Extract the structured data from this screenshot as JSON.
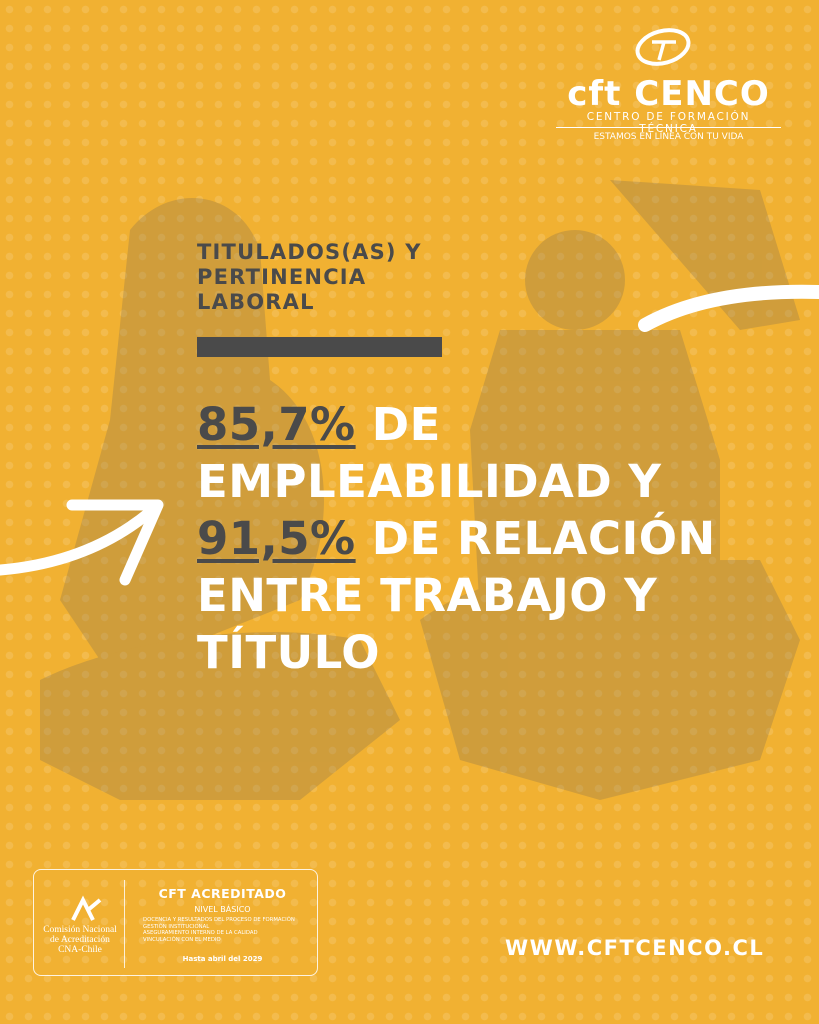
{
  "logo": {
    "wordmark": "cft CENCO",
    "subtitle": "CENTRO DE FORMACIÓN TÉCNICA",
    "tagline": "ESTAMOS EN LÍNEA CON TU VIDA"
  },
  "title": {
    "lines": [
      "TITULADOS(AS) Y",
      "PERTINENCIA",
      "LABORAL"
    ]
  },
  "headline": {
    "lines": [
      [
        {
          "text": "85,7%",
          "highlight": true
        },
        {
          "text": " DE"
        }
      ],
      [
        {
          "text": "EMPLEABILIDAD Y"
        }
      ],
      [
        {
          "text": "91,5%",
          "highlight": true
        },
        {
          "text": " DE RELACIÓN"
        }
      ],
      [
        {
          "text": "ENTRE TRABAJO Y"
        }
      ],
      [
        {
          "text": "TÍTULO"
        }
      ]
    ]
  },
  "accreditation": {
    "agency": [
      "Comisión Nacional",
      "de Acreditación",
      "CNA-Chile"
    ],
    "title": "CFT ACREDITADO",
    "level": "NIVEL BÁSICO",
    "areas": [
      "DOCENCIA Y RESULTADOS DEL PROCESO DE FORMACIÓN",
      "GESTIÓN INSTITUCIONAL",
      "ASEGURAMIENTO INTERNO DE LA CALIDAD",
      "VINCULACIÓN CON EL MEDIO"
    ],
    "until": "Hasta abril del 2029"
  },
  "website": "WWW.CFTCENCO.CL"
}
